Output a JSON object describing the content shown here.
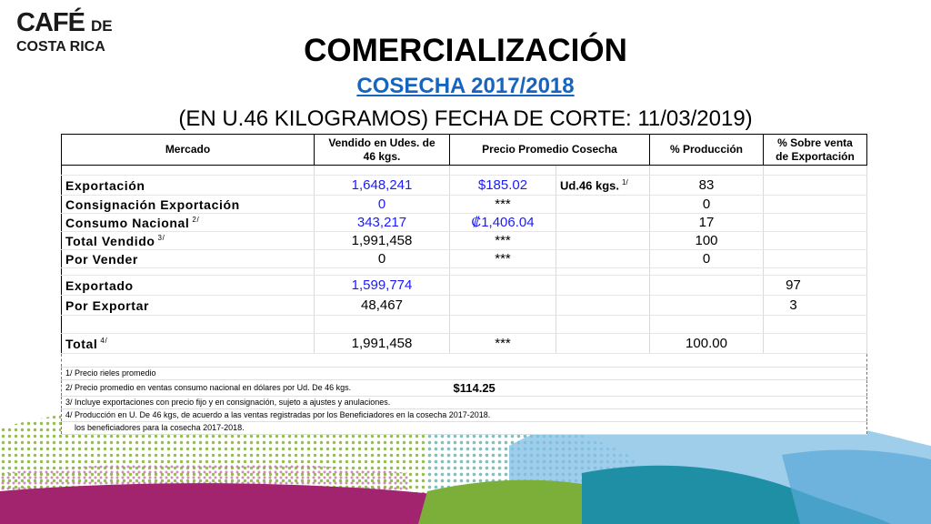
{
  "logo": {
    "line1": "CAFÉ",
    "line1_suffix": "DE",
    "line2": "COSTA RICA"
  },
  "header": {
    "title": "COMERCIALIZACIÓN",
    "subtitle": "COSECHA 2017/2018",
    "caption": "(EN U.46 KILOGRAMOS) FECHA DE CORTE: 11/03/2019)"
  },
  "table": {
    "headers": {
      "mercado": "Mercado",
      "vendido_line1": "Vendido en Udes. de",
      "vendido_line2": "46 kgs.",
      "precio": "Precio Promedio  Cosecha",
      "produccion": "% Producción",
      "sobre_line1": "% Sobre venta",
      "sobre_line2": "de  Exportación"
    },
    "rows": {
      "exportacion": {
        "label": "Exportación",
        "vendido": "1,648,241",
        "precio": "$185.02",
        "unit": "Ud.46 kgs.",
        "unit_note": "1/",
        "produccion": "83"
      },
      "consignacion": {
        "label": "Consignación Exportación",
        "vendido": "0",
        "precio": "***",
        "produccion": "0"
      },
      "consumo": {
        "label": "Consumo Nacional",
        "note": "2/",
        "vendido": "343,217",
        "precio": "₡1,406.04",
        "produccion": "17"
      },
      "total_vendido": {
        "label": "Total Vendido",
        "note": "3/",
        "vendido": "1,991,458",
        "precio": "***",
        "produccion": "100"
      },
      "por_vender": {
        "label": "Por Vender",
        "vendido": "0",
        "precio": "***",
        "produccion": "0"
      },
      "exportado": {
        "label": "Exportado",
        "vendido": "1,599,774",
        "sobre": "97"
      },
      "por_exportar": {
        "label": "Por Exportar",
        "vendido": "48,467",
        "sobre": "3"
      },
      "total": {
        "label": "Total",
        "note": "4/",
        "vendido": "1,991,458",
        "precio": "***",
        "produccion": "100.00"
      }
    }
  },
  "notes": {
    "n1": "1/ Precio rieles promedio",
    "n2": "2/ Precio promedio en ventas consumo nacional en dólares por Ud. De 46 kgs.",
    "n2_value": "$114.25",
    "n3": "3/ Incluye exportaciones con precio fijo y en consignación, sujeto a ajustes y anulaciones.",
    "n4": "4/ Producción en U. De 46 kgs, de acuerdo a las ventas registradas por los Beneficiadores en la cosecha 2017-2018.",
    "n4b": "    los beneficiadores para la cosecha 2017-2018."
  },
  "colors": {
    "title_blue": "#1565c0",
    "value_blue": "#1a1aff",
    "green": "#8ab83c",
    "magenta": "#a3246e",
    "teal": "#1f8fa6",
    "light_blue": "#8ec6e8"
  }
}
